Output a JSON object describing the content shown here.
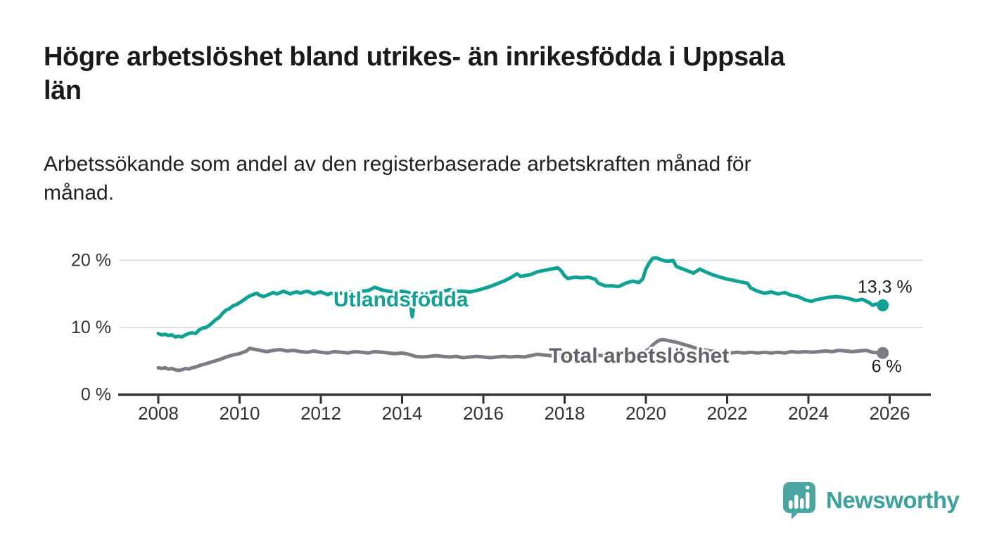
{
  "header": {
    "title": "Högre arbetslöshet bland utrikes- än inrikesfödda i Uppsala län",
    "title_lines": [
      "Högre arbetslöshet bland utrikes- än inrikesfödda i Uppsala",
      "län"
    ],
    "subtitle": "Arbetssökande som andel av den registerbaserade arbetskraften månad för månad.",
    "subtitle_lines": [
      "Arbetssökande som andel av den registerbaserade arbetskraften månad för",
      "månad."
    ]
  },
  "chart_data": {
    "type": "line",
    "title": "Högre arbetslöshet bland utrikes- än inrikesfödda i Uppsala län",
    "subtitle": "Arbetssökande som andel av den registerbaserade arbetskraften månad för månad.",
    "xlabel": "",
    "ylabel": "",
    "x_axis": {
      "ticks": [
        2008,
        2010,
        2012,
        2014,
        2016,
        2018,
        2020,
        2022,
        2024,
        2026
      ],
      "range": [
        2007.05,
        2027.0
      ]
    },
    "y_axis": {
      "unit": "%",
      "range": [
        0,
        21.5
      ],
      "ticks": [
        {
          "value": 0,
          "label": "0 %"
        },
        {
          "value": 10,
          "label": "10 %"
        },
        {
          "value": 20,
          "label": "20 %"
        }
      ]
    },
    "grid": "horizontal",
    "legend": "inline-labels",
    "series": [
      {
        "id": "utlandsfodda",
        "name": "Utlandsfödda",
        "color": "#10a195",
        "label_color": "#10a195",
        "line_label_anchor": {
          "year": 2013.97,
          "pct": 14.2
        },
        "end_label": "13,3 %",
        "end_value": 13.3,
        "points": [
          [
            2008.0,
            9.1
          ],
          [
            2008.08,
            8.9
          ],
          [
            2008.17,
            9.0
          ],
          [
            2008.25,
            8.8
          ],
          [
            2008.33,
            8.9
          ],
          [
            2008.42,
            8.6
          ],
          [
            2008.5,
            8.7
          ],
          [
            2008.58,
            8.6
          ],
          [
            2008.67,
            8.9
          ],
          [
            2008.75,
            9.1
          ],
          [
            2008.83,
            9.2
          ],
          [
            2008.92,
            9.1
          ],
          [
            2009.0,
            9.6
          ],
          [
            2009.08,
            9.9
          ],
          [
            2009.17,
            10.0
          ],
          [
            2009.25,
            10.3
          ],
          [
            2009.33,
            10.7
          ],
          [
            2009.42,
            11.2
          ],
          [
            2009.5,
            11.5
          ],
          [
            2009.58,
            12.1
          ],
          [
            2009.67,
            12.6
          ],
          [
            2009.75,
            12.8
          ],
          [
            2009.83,
            13.2
          ],
          [
            2009.92,
            13.4
          ],
          [
            2010.0,
            13.7
          ],
          [
            2010.08,
            14.0
          ],
          [
            2010.17,
            14.4
          ],
          [
            2010.25,
            14.7
          ],
          [
            2010.33,
            14.9
          ],
          [
            2010.42,
            15.1
          ],
          [
            2010.5,
            14.8
          ],
          [
            2010.58,
            14.6
          ],
          [
            2010.67,
            14.8
          ],
          [
            2010.75,
            15.0
          ],
          [
            2010.83,
            15.2
          ],
          [
            2010.92,
            15.0
          ],
          [
            2011.0,
            15.2
          ],
          [
            2011.08,
            15.4
          ],
          [
            2011.17,
            15.2
          ],
          [
            2011.25,
            15.0
          ],
          [
            2011.33,
            15.2
          ],
          [
            2011.42,
            15.3
          ],
          [
            2011.5,
            15.1
          ],
          [
            2011.58,
            15.3
          ],
          [
            2011.67,
            15.4
          ],
          [
            2011.75,
            15.2
          ],
          [
            2011.83,
            15.0
          ],
          [
            2011.92,
            15.2
          ],
          [
            2012.0,
            15.3
          ],
          [
            2012.08,
            15.1
          ],
          [
            2012.17,
            14.9
          ],
          [
            2012.25,
            15.1
          ],
          [
            2012.33,
            15.0
          ],
          [
            2012.42,
            15.2
          ],
          [
            2012.5,
            15.1
          ],
          [
            2012.58,
            15.0
          ],
          [
            2012.67,
            15.2
          ],
          [
            2012.75,
            15.3
          ],
          [
            2012.83,
            15.1
          ],
          [
            2012.92,
            15.2
          ],
          [
            2013.0,
            15.4
          ],
          [
            2013.17,
            15.5
          ],
          [
            2013.33,
            16.0
          ],
          [
            2013.5,
            15.6
          ],
          [
            2013.67,
            15.4
          ],
          [
            2013.83,
            15.3
          ],
          [
            2014.0,
            15.4
          ],
          [
            2014.17,
            15.2
          ],
          [
            2014.25,
            11.6
          ],
          [
            2014.33,
            15.1
          ],
          [
            2014.5,
            15.0
          ],
          [
            2014.67,
            15.2
          ],
          [
            2014.83,
            15.3
          ],
          [
            2015.0,
            15.4
          ],
          [
            2015.17,
            15.6
          ],
          [
            2015.33,
            15.4
          ],
          [
            2015.5,
            15.4
          ],
          [
            2015.67,
            15.3
          ],
          [
            2015.83,
            15.5
          ],
          [
            2016.0,
            15.8
          ],
          [
            2016.17,
            16.1
          ],
          [
            2016.33,
            16.5
          ],
          [
            2016.5,
            16.9
          ],
          [
            2016.67,
            17.4
          ],
          [
            2016.83,
            18.0
          ],
          [
            2016.92,
            17.6
          ],
          [
            2017.0,
            17.7
          ],
          [
            2017.17,
            17.9
          ],
          [
            2017.33,
            18.3
          ],
          [
            2017.5,
            18.5
          ],
          [
            2017.67,
            18.7
          ],
          [
            2017.83,
            18.9
          ],
          [
            2017.92,
            18.4
          ],
          [
            2018.0,
            17.7
          ],
          [
            2018.08,
            17.3
          ],
          [
            2018.25,
            17.5
          ],
          [
            2018.42,
            17.4
          ],
          [
            2018.58,
            17.5
          ],
          [
            2018.75,
            17.2
          ],
          [
            2018.83,
            16.6
          ],
          [
            2019.0,
            16.2
          ],
          [
            2019.17,
            16.2
          ],
          [
            2019.33,
            16.1
          ],
          [
            2019.5,
            16.6
          ],
          [
            2019.67,
            16.9
          ],
          [
            2019.83,
            16.7
          ],
          [
            2019.92,
            17.2
          ],
          [
            2020.0,
            18.7
          ],
          [
            2020.08,
            19.6
          ],
          [
            2020.17,
            20.3
          ],
          [
            2020.25,
            20.4
          ],
          [
            2020.33,
            20.2
          ],
          [
            2020.42,
            20.0
          ],
          [
            2020.5,
            19.9
          ],
          [
            2020.58,
            19.9
          ],
          [
            2020.67,
            20.0
          ],
          [
            2020.75,
            19.1
          ],
          [
            2020.83,
            18.9
          ],
          [
            2021.0,
            18.5
          ],
          [
            2021.17,
            18.1
          ],
          [
            2021.25,
            18.4
          ],
          [
            2021.33,
            18.7
          ],
          [
            2021.5,
            18.2
          ],
          [
            2021.67,
            17.8
          ],
          [
            2021.83,
            17.5
          ],
          [
            2022.0,
            17.2
          ],
          [
            2022.17,
            17.0
          ],
          [
            2022.33,
            16.8
          ],
          [
            2022.5,
            16.6
          ],
          [
            2022.58,
            15.9
          ],
          [
            2022.75,
            15.4
          ],
          [
            2022.92,
            15.1
          ],
          [
            2023.08,
            15.3
          ],
          [
            2023.25,
            15.0
          ],
          [
            2023.42,
            15.2
          ],
          [
            2023.58,
            14.8
          ],
          [
            2023.75,
            14.6
          ],
          [
            2023.92,
            14.1
          ],
          [
            2024.08,
            13.9
          ],
          [
            2024.17,
            14.1
          ],
          [
            2024.33,
            14.3
          ],
          [
            2024.5,
            14.5
          ],
          [
            2024.67,
            14.6
          ],
          [
            2024.83,
            14.5
          ],
          [
            2025.0,
            14.3
          ],
          [
            2025.17,
            14.0
          ],
          [
            2025.33,
            14.2
          ],
          [
            2025.5,
            13.7
          ],
          [
            2025.58,
            13.3
          ],
          [
            2025.67,
            13.5
          ],
          [
            2025.83,
            13.3
          ]
        ]
      },
      {
        "id": "total",
        "name": "Total arbetslöshet",
        "color": "#7c7c85",
        "label_color": "#63636b",
        "line_label_anchor": {
          "year": 2019.83,
          "pct": 5.8
        },
        "end_label": "6 %",
        "end_value": 6.0,
        "points": [
          [
            2008.0,
            4.0
          ],
          [
            2008.08,
            3.9
          ],
          [
            2008.17,
            4.0
          ],
          [
            2008.25,
            3.8
          ],
          [
            2008.33,
            3.9
          ],
          [
            2008.42,
            3.7
          ],
          [
            2008.5,
            3.6
          ],
          [
            2008.58,
            3.7
          ],
          [
            2008.67,
            3.9
          ],
          [
            2008.75,
            3.8
          ],
          [
            2008.83,
            4.0
          ],
          [
            2008.92,
            4.1
          ],
          [
            2009.0,
            4.3
          ],
          [
            2009.17,
            4.6
          ],
          [
            2009.33,
            4.9
          ],
          [
            2009.5,
            5.2
          ],
          [
            2009.67,
            5.6
          ],
          [
            2009.83,
            5.9
          ],
          [
            2010.0,
            6.1
          ],
          [
            2010.17,
            6.5
          ],
          [
            2010.25,
            6.9
          ],
          [
            2010.33,
            6.8
          ],
          [
            2010.5,
            6.6
          ],
          [
            2010.67,
            6.4
          ],
          [
            2010.83,
            6.6
          ],
          [
            2011.0,
            6.7
          ],
          [
            2011.17,
            6.5
          ],
          [
            2011.33,
            6.6
          ],
          [
            2011.5,
            6.4
          ],
          [
            2011.67,
            6.3
          ],
          [
            2011.83,
            6.5
          ],
          [
            2012.0,
            6.3
          ],
          [
            2012.17,
            6.2
          ],
          [
            2012.33,
            6.4
          ],
          [
            2012.5,
            6.3
          ],
          [
            2012.67,
            6.2
          ],
          [
            2012.83,
            6.4
          ],
          [
            2013.0,
            6.3
          ],
          [
            2013.17,
            6.2
          ],
          [
            2013.33,
            6.4
          ],
          [
            2013.5,
            6.3
          ],
          [
            2013.67,
            6.2
          ],
          [
            2013.83,
            6.1
          ],
          [
            2014.0,
            6.2
          ],
          [
            2014.17,
            6.0
          ],
          [
            2014.33,
            5.7
          ],
          [
            2014.5,
            5.6
          ],
          [
            2014.67,
            5.7
          ],
          [
            2014.83,
            5.8
          ],
          [
            2015.0,
            5.7
          ],
          [
            2015.17,
            5.6
          ],
          [
            2015.33,
            5.7
          ],
          [
            2015.5,
            5.5
          ],
          [
            2015.67,
            5.6
          ],
          [
            2015.83,
            5.7
          ],
          [
            2016.0,
            5.6
          ],
          [
            2016.17,
            5.5
          ],
          [
            2016.33,
            5.6
          ],
          [
            2016.5,
            5.7
          ],
          [
            2016.67,
            5.6
          ],
          [
            2016.83,
            5.7
          ],
          [
            2017.0,
            5.6
          ],
          [
            2017.17,
            5.8
          ],
          [
            2017.33,
            6.0
          ],
          [
            2017.5,
            5.9
          ],
          [
            2017.67,
            5.8
          ],
          [
            2017.83,
            5.9
          ],
          [
            2018.0,
            5.8
          ],
          [
            2018.25,
            5.7
          ],
          [
            2018.5,
            5.8
          ],
          [
            2018.75,
            5.9
          ],
          [
            2019.0,
            5.8
          ],
          [
            2019.25,
            5.9
          ],
          [
            2019.5,
            6.0
          ],
          [
            2019.75,
            6.1
          ],
          [
            2019.92,
            6.2
          ],
          [
            2020.08,
            6.8
          ],
          [
            2020.17,
            7.4
          ],
          [
            2020.25,
            7.8
          ],
          [
            2020.33,
            8.1
          ],
          [
            2020.42,
            8.2
          ],
          [
            2020.5,
            8.1
          ],
          [
            2020.58,
            8.0
          ],
          [
            2020.75,
            7.8
          ],
          [
            2020.92,
            7.5
          ],
          [
            2021.08,
            7.2
          ],
          [
            2021.25,
            6.9
          ],
          [
            2021.42,
            6.7
          ],
          [
            2021.58,
            6.5
          ],
          [
            2021.75,
            6.4
          ],
          [
            2021.92,
            6.3
          ],
          [
            2022.08,
            6.2
          ],
          [
            2022.25,
            6.3
          ],
          [
            2022.42,
            6.2
          ],
          [
            2022.58,
            6.3
          ],
          [
            2022.75,
            6.2
          ],
          [
            2022.92,
            6.3
          ],
          [
            2023.08,
            6.2
          ],
          [
            2023.25,
            6.3
          ],
          [
            2023.42,
            6.2
          ],
          [
            2023.58,
            6.4
          ],
          [
            2023.75,
            6.3
          ],
          [
            2023.92,
            6.4
          ],
          [
            2024.08,
            6.3
          ],
          [
            2024.25,
            6.4
          ],
          [
            2024.42,
            6.5
          ],
          [
            2024.58,
            6.4
          ],
          [
            2024.75,
            6.6
          ],
          [
            2024.92,
            6.5
          ],
          [
            2025.08,
            6.4
          ],
          [
            2025.25,
            6.5
          ],
          [
            2025.42,
            6.6
          ],
          [
            2025.58,
            6.3
          ],
          [
            2025.75,
            6.2
          ],
          [
            2025.83,
            6.2
          ]
        ]
      }
    ]
  },
  "branding": {
    "name": "Newsworthy",
    "icon": "newsworthy-speech-bubble-chart-icon",
    "text_color": "#3ba19e",
    "icon_color": "#4ba5a2"
  },
  "colors": {
    "background": "#ffffff",
    "title": "#1a1a1a",
    "subtitle": "#212121",
    "axis": "#2f2f2f",
    "grid": "#d8d8d8",
    "tick_label": "#333333",
    "value_label": "#1a1a1a"
  }
}
